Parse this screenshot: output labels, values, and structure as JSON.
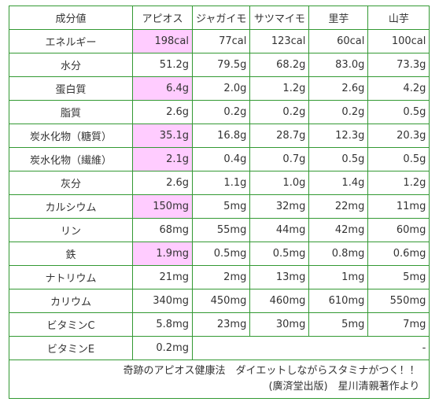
{
  "header": [
    "成分値",
    "アピオス",
    "ジャガイモ",
    "サツマイモ",
    "里芋",
    "山芋"
  ],
  "rows": [
    {
      "label": "エネルギー",
      "values": [
        "198cal",
        "77cal",
        "123cal",
        "60cal",
        "100cal"
      ],
      "highlight": true
    },
    {
      "label": "水分",
      "values": [
        "51.2g",
        "79.5g",
        "68.2g",
        "83.0g",
        "73.3g"
      ],
      "highlight": false
    },
    {
      "label": "蛋白質",
      "values": [
        "6.4g",
        "2.0g",
        "1.2g",
        "2.6g",
        "4.2g"
      ],
      "highlight": true
    },
    {
      "label": "脂質",
      "values": [
        "2.6g",
        "0.2g",
        "0.2g",
        "0.2g",
        "0.5g"
      ],
      "highlight": false
    },
    {
      "label": "炭水化物（糖質）",
      "values": [
        "35.1g",
        "16.8g",
        "28.7g",
        "12.3g",
        "20.3g"
      ],
      "highlight": true
    },
    {
      "label": "炭水化物（繊維）",
      "values": [
        "2.1g",
        "0.4g",
        "0.7g",
        "0.5g",
        "0.5g"
      ],
      "highlight": true
    },
    {
      "label": "灰分",
      "values": [
        "2.6g",
        "1.1g",
        "1.0g",
        "1.4g",
        "1.2g"
      ],
      "highlight": false
    },
    {
      "label": "カルシウム",
      "values": [
        "150mg",
        "5mg",
        "32mg",
        "22mg",
        "11mg"
      ],
      "highlight": true
    },
    {
      "label": "リン",
      "values": [
        "68mg",
        "55mg",
        "44mg",
        "42mg",
        "60mg"
      ],
      "highlight": false
    },
    {
      "label": "鉄",
      "values": [
        "1.9mg",
        "0.5mg",
        "0.5mg",
        "0.8mg",
        "0.6mg"
      ],
      "highlight": true
    },
    {
      "label": "ナトリウム",
      "values": [
        "21mg",
        "2mg",
        "13mg",
        "1mg",
        "5mg"
      ],
      "highlight": false
    },
    {
      "label": "カリウム",
      "values": [
        "340mg",
        "450mg",
        "460mg",
        "610mg",
        "550mg"
      ],
      "highlight": false
    },
    {
      "label": "ビタミンC",
      "values": [
        "5.8mg",
        "23mg",
        "30mg",
        "5mg",
        "7mg"
      ],
      "highlight": false
    }
  ],
  "last_row": {
    "label": "ビタミンE",
    "value": "0.2mg",
    "dash": "-"
  },
  "source": {
    "line1": "奇跡のアピオス健康法　ダイエットしながらスタミナがつく！！",
    "line2": "(廣済堂出版)　星川清親著作より"
  },
  "colors": {
    "border": "#339933",
    "highlight": "#ffccff"
  }
}
